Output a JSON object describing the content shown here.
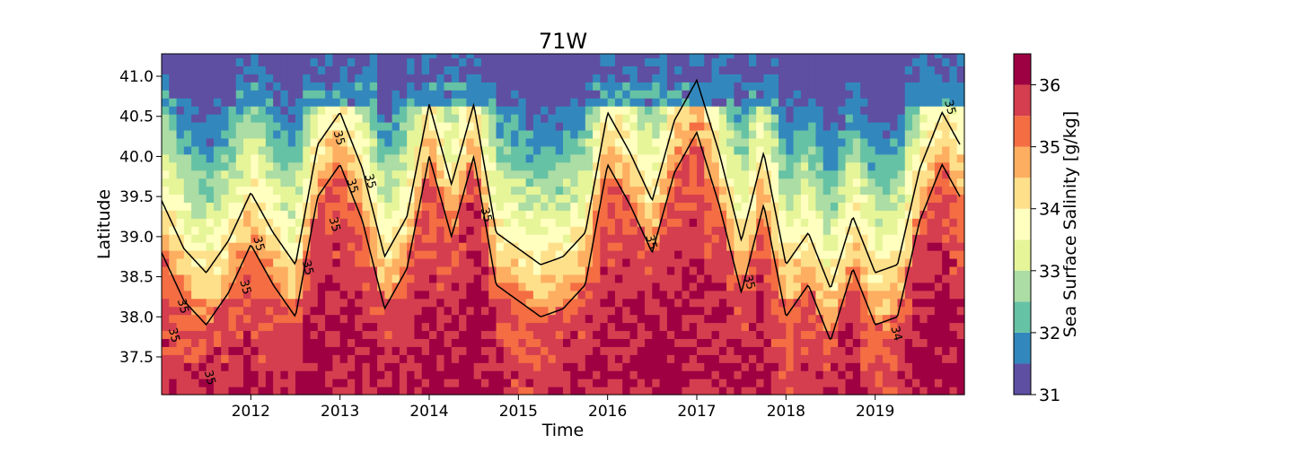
{
  "chart_data": {
    "type": "heatmap",
    "title": "71W",
    "xlabel": "Time",
    "ylabel": "Latitude",
    "colorbar_label": "Sea Surface Salinity [g/kg]",
    "x_range": [
      "2011-01",
      "2019-12"
    ],
    "y_range": [
      37.03,
      41.28
    ],
    "x_ticks": [
      "2012",
      "2013",
      "2014",
      "2015",
      "2016",
      "2017",
      "2018",
      "2019"
    ],
    "y_ticks": [
      37.5,
      38.0,
      38.5,
      39.0,
      39.5,
      40.0,
      40.5,
      41.0
    ],
    "y_tick_labels": [
      "37.5",
      "38.0",
      "38.5",
      "39.0",
      "39.5",
      "40.0",
      "40.5",
      "41.0"
    ],
    "colorbar_ticks": [
      31,
      32,
      33,
      34,
      35,
      36
    ],
    "colorbar_tick_labels": [
      "31",
      "32",
      "33",
      "34",
      "35",
      "36"
    ],
    "color_levels": [
      {
        "min": 31.0,
        "max": 31.5,
        "color": "#5e4fa2"
      },
      {
        "min": 31.5,
        "max": 32.0,
        "color": "#3288bd"
      },
      {
        "min": 32.0,
        "max": 32.5,
        "color": "#66c2a5"
      },
      {
        "min": 32.5,
        "max": 33.0,
        "color": "#abdda4"
      },
      {
        "min": 33.0,
        "max": 33.5,
        "color": "#e6f598"
      },
      {
        "min": 33.5,
        "max": 34.0,
        "color": "#ffffbf"
      },
      {
        "min": 34.0,
        "max": 34.5,
        "color": "#fee08b"
      },
      {
        "min": 34.5,
        "max": 35.0,
        "color": "#fdae61"
      },
      {
        "min": 35.0,
        "max": 35.5,
        "color": "#f46d43"
      },
      {
        "min": 35.5,
        "max": 36.0,
        "color": "#d53e4f"
      },
      {
        "min": 36.0,
        "max": 36.5,
        "color": "#9e0142"
      }
    ],
    "contour_levels": [
      34,
      35
    ],
    "contour_label_texts": [
      "35",
      "35",
      "35",
      "35",
      "35",
      "35",
      "35",
      "35",
      "35",
      "35",
      "35",
      "34",
      "35",
      "35",
      "35"
    ],
    "series_front_35": {
      "name": "",
      "years": [
        2011.0,
        2011.25,
        2011.5,
        2011.75,
        2012.0,
        2012.25,
        2012.5,
        2012.75,
        2013.0,
        2013.25,
        2013.5,
        2013.75,
        2014.0,
        2014.25,
        2014.5,
        2014.75,
        2015.0,
        2015.25,
        2015.5,
        2015.75,
        2016.0,
        2016.25,
        2016.5,
        2016.75,
        2017.0,
        2017.25,
        2017.5,
        2017.75,
        2018.0,
        2018.25,
        2018.5,
        2018.75,
        2019.0,
        2019.25,
        2019.5,
        2019.75,
        2019.95
      ],
      "latitude": [
        38.8,
        38.2,
        37.9,
        38.3,
        38.9,
        38.4,
        38.0,
        39.5,
        39.9,
        39.2,
        38.1,
        38.6,
        40.0,
        39.0,
        40.0,
        38.4,
        38.2,
        38.0,
        38.1,
        38.4,
        39.9,
        39.4,
        38.8,
        39.8,
        40.3,
        39.4,
        38.3,
        39.4,
        38.0,
        38.4,
        37.7,
        38.6,
        37.9,
        38.0,
        39.2,
        39.9,
        39.5
      ]
    }
  }
}
